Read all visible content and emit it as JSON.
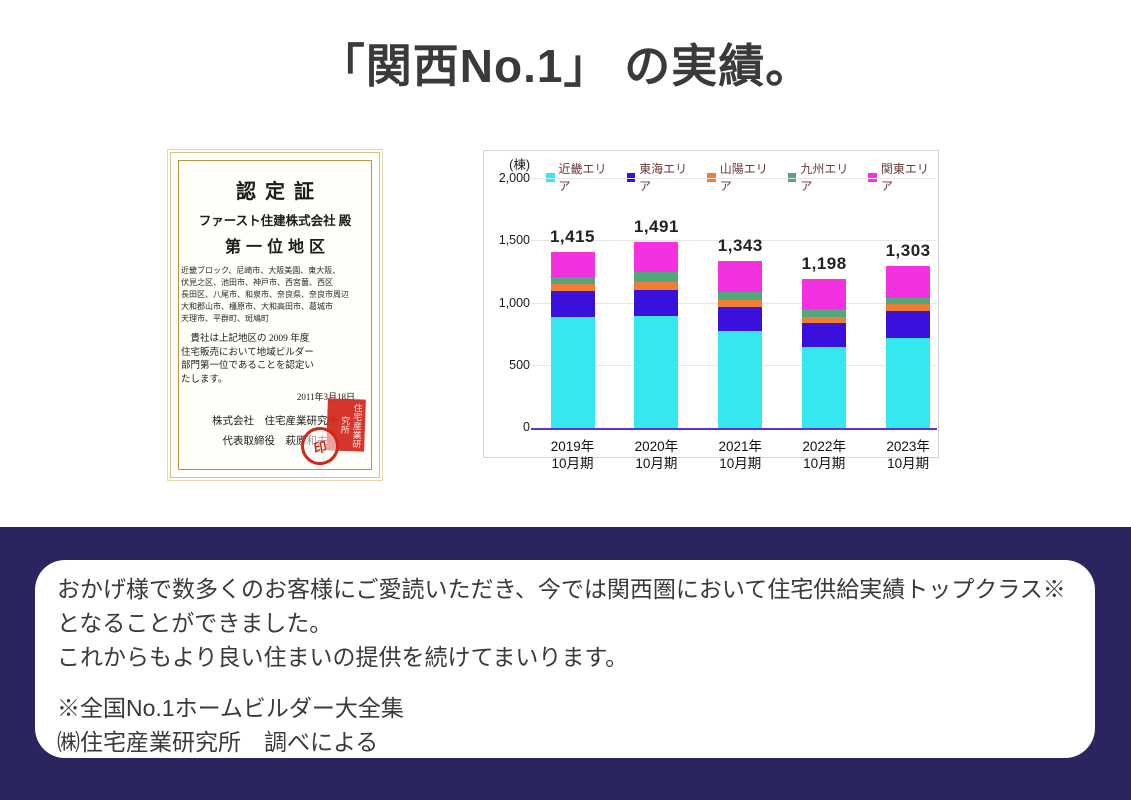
{
  "title": "「関西No.1」 の実績。",
  "certificate": {
    "heading": "認定証",
    "recipient": "ファースト住建株式会社 殿",
    "rank": "第一位地区",
    "region_lines": [
      "近畿ブロック、尼崎市、大阪美園、東大阪、",
      "伏見之区、池田市、神戸市、西宮薗、西区",
      "長田区、八尾市、和泉市、奈良県、奈良市周辺",
      "大和郡山市、橿原市、大和高田市、葛城市",
      "天理市、平群町、斑鳩町"
    ],
    "body_lines": [
      "貴社は上記地区の 2009 年度",
      "住宅販売において地域ビルダー",
      "部門第一位であることを認定い",
      "たします。"
    ],
    "date": "2011年3月18日",
    "issuer": "株式会社　住宅産業研究所",
    "signer": "代表取締役　萩原和夫",
    "seal_text": "住宅産業研究所",
    "round_seal_text": "印"
  },
  "chart_data": {
    "type": "bar",
    "stacked": true,
    "unit_label": "(棟)",
    "legend_position": "top",
    "grid": true,
    "ylim": [
      0,
      2000
    ],
    "yticks": [
      {
        "label": "0",
        "value": 0
      },
      {
        "label": "500",
        "value": 500
      },
      {
        "label": "1,000",
        "value": 1000
      },
      {
        "label": "1,500",
        "value": 1500
      },
      {
        "label": "2,000",
        "value": 2000
      }
    ],
    "categories": [
      [
        "2019年",
        "10月期"
      ],
      [
        "2020年",
        "10月期"
      ],
      [
        "2021年",
        "10月期"
      ],
      [
        "2022年",
        "10月期"
      ],
      [
        "2023年",
        "10月期"
      ]
    ],
    "series": [
      {
        "name": "近畿エリア",
        "color": "#35e8f0",
        "values": [
          890,
          900,
          780,
          650,
          720
        ]
      },
      {
        "name": "東海エリア",
        "color": "#3a10dd",
        "values": [
          210,
          205,
          195,
          190,
          220
        ]
      },
      {
        "name": "山陽エリア",
        "color": "#ef7d35",
        "values": [
          55,
          65,
          55,
          55,
          55
        ]
      },
      {
        "name": "九州エリア",
        "color": "#53a57c",
        "values": [
          60,
          80,
          65,
          63,
          47
        ]
      },
      {
        "name": "関東エリア",
        "color": "#f431e0",
        "values": [
          200,
          241,
          248,
          240,
          261
        ]
      }
    ],
    "totals": [
      1415,
      1491,
      1343,
      1198,
      1303
    ],
    "totals_display": [
      "1,415",
      "1,491",
      "1,343",
      "1,198",
      "1,303"
    ],
    "baseline_color": "#5d35c8"
  },
  "footer": {
    "paragraph1": "おかげ様で数多くのお客様にご愛読いただき、今では関西圏において住宅供給実績トップクラス※となることができました。",
    "paragraph2": "これからもより良い住まいの提供を続けてまいります。",
    "note1": "※全国No.1ホームビルダー大全集",
    "note2": "㈱住宅産業研究所　調べによる"
  },
  "colors": {
    "navy_band": "#2a255e",
    "title_text": "#3a3a3a",
    "legend_text": "#6b3a34",
    "seal_red": "#d3261a",
    "gold_frame": "#c19a3e"
  }
}
